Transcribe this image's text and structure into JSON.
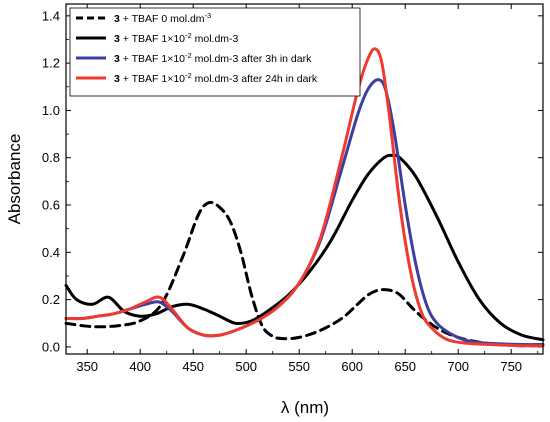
{
  "chart_data": {
    "type": "line",
    "title": "",
    "xlabel": "λ (nm)",
    "ylabel": "Absorbance",
    "xlim": [
      330,
      780
    ],
    "ylim": [
      -0.03,
      1.45
    ],
    "xticks": [
      350,
      400,
      450,
      500,
      550,
      600,
      650,
      700,
      750
    ],
    "yticks": [
      0.0,
      0.2,
      0.4,
      0.6,
      0.8,
      1.0,
      1.2,
      1.4
    ],
    "ytick_labels": [
      "0.0",
      "0.2",
      "0.4",
      "0.6",
      "0.8",
      "1.0",
      "1.2",
      "1.4"
    ],
    "legend": {
      "placement": "top-left",
      "frame": true
    },
    "series": [
      {
        "name": "3 + TBAF 0 mol.dm-3",
        "legend_bold": "3",
        "legend_text": " + TBAF 0 mol.dm",
        "legend_sup": "-3",
        "legend_after": "",
        "color": "#000000",
        "style": "dashed",
        "x": [
          330,
          345,
          360,
          380,
          400,
          420,
          440,
          455,
          465,
          475,
          485,
          495,
          505,
          515,
          525,
          535,
          550,
          570,
          590,
          605,
          615,
          625,
          635,
          645,
          660,
          680,
          700,
          720,
          740,
          760,
          780
        ],
        "y": [
          0.1,
          0.09,
          0.085,
          0.09,
          0.11,
          0.18,
          0.38,
          0.56,
          0.61,
          0.59,
          0.53,
          0.4,
          0.22,
          0.09,
          0.045,
          0.035,
          0.04,
          0.07,
          0.12,
          0.18,
          0.22,
          0.24,
          0.24,
          0.22,
          0.15,
          0.08,
          0.04,
          0.02,
          0.01,
          0.005,
          0.005
        ]
      },
      {
        "name": "3 + TBAF 1×10-2 mol.dm-3",
        "legend_bold": "3",
        "legend_text": " + TBAF 1×10",
        "legend_sup": "-2",
        "legend_after": " mol.dm-3",
        "color": "#000000",
        "style": "solid",
        "x": [
          330,
          340,
          355,
          370,
          385,
          400,
          415,
          430,
          445,
          460,
          475,
          490,
          505,
          520,
          540,
          560,
          580,
          600,
          615,
          630,
          638,
          645,
          660,
          680,
          700,
          720,
          740,
          760,
          780
        ],
        "y": [
          0.26,
          0.2,
          0.18,
          0.21,
          0.15,
          0.13,
          0.14,
          0.17,
          0.18,
          0.16,
          0.13,
          0.1,
          0.11,
          0.15,
          0.22,
          0.32,
          0.45,
          0.62,
          0.73,
          0.8,
          0.81,
          0.8,
          0.72,
          0.55,
          0.36,
          0.2,
          0.1,
          0.05,
          0.03
        ]
      },
      {
        "name": "3 + TBAF 1×10-2 mol.dm-3 after 3h in dark",
        "legend_bold": "3",
        "legend_text": " + TBAF 1×10",
        "legend_sup": "-2",
        "legend_after": " mol.dm-3 after 3h in dark",
        "color": "#3b3fa0",
        "style": "solid",
        "x": [
          330,
          345,
          360,
          375,
          390,
          405,
          418,
          430,
          445,
          460,
          475,
          490,
          510,
          530,
          550,
          570,
          590,
          605,
          615,
          625,
          632,
          640,
          650,
          660,
          670,
          680,
          695,
          710,
          730,
          760,
          780
        ],
        "y": [
          0.12,
          0.12,
          0.13,
          0.14,
          0.16,
          0.18,
          0.19,
          0.15,
          0.08,
          0.05,
          0.05,
          0.07,
          0.11,
          0.17,
          0.27,
          0.45,
          0.75,
          0.98,
          1.09,
          1.13,
          1.08,
          0.9,
          0.6,
          0.35,
          0.18,
          0.1,
          0.05,
          0.025,
          0.015,
          0.01,
          0.01
        ]
      },
      {
        "name": "3 + TBAF 1×10-2 mol.dm-3 after 24h in dark",
        "legend_bold": "3",
        "legend_text": " + TBAF 1×10",
        "legend_sup": "-2",
        "legend_after": " mol.dm-3 after 24h in dark",
        "color": "#ee3a2f",
        "style": "solid",
        "x": [
          330,
          345,
          360,
          375,
          390,
          405,
          418,
          430,
          445,
          460,
          475,
          490,
          510,
          530,
          550,
          570,
          590,
          605,
          615,
          622,
          628,
          635,
          645,
          655,
          665,
          675,
          690,
          710,
          730,
          760,
          780
        ],
        "y": [
          0.12,
          0.12,
          0.13,
          0.14,
          0.16,
          0.19,
          0.21,
          0.16,
          0.08,
          0.05,
          0.05,
          0.07,
          0.11,
          0.17,
          0.27,
          0.46,
          0.8,
          1.08,
          1.22,
          1.26,
          1.2,
          0.98,
          0.6,
          0.32,
          0.15,
          0.08,
          0.03,
          0.015,
          0.01,
          0.005,
          0.005
        ]
      }
    ]
  }
}
